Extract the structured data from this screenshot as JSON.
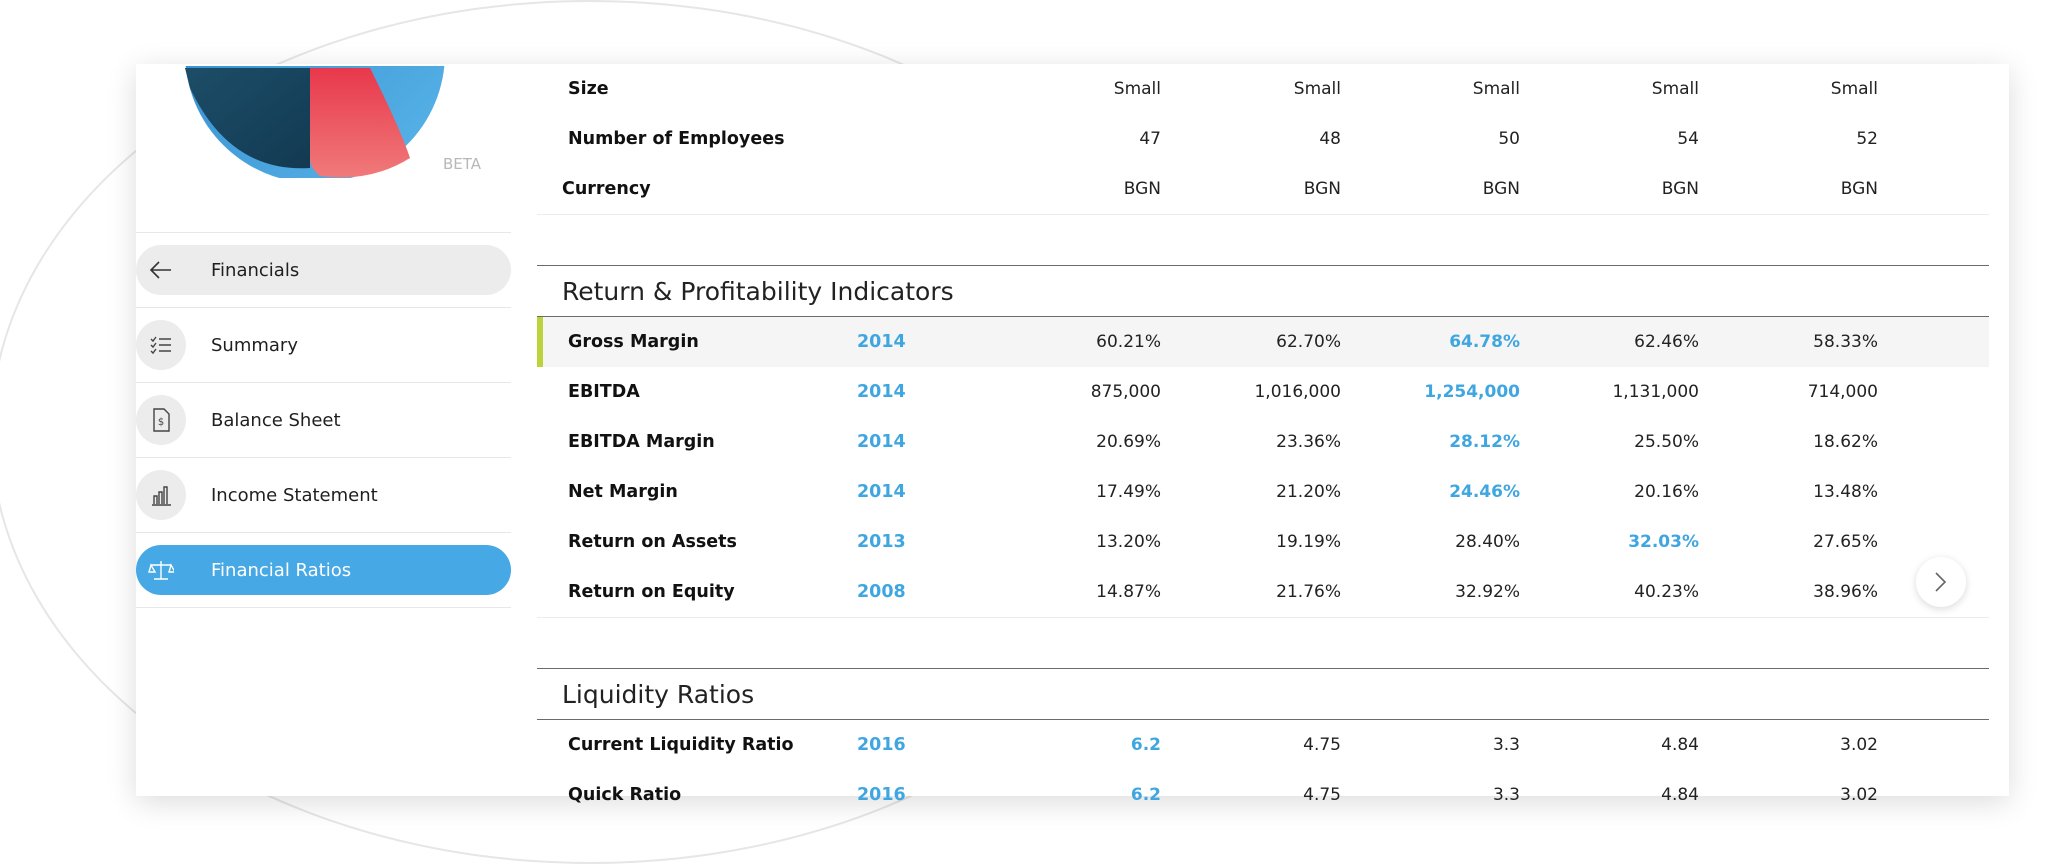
{
  "logo": {
    "beta_label": "BETA"
  },
  "sidebar": {
    "items": [
      {
        "label": "Financials",
        "icon": "arrow-left-icon",
        "state": "back"
      },
      {
        "label": "Summary",
        "icon": "list-check-icon",
        "state": "normal"
      },
      {
        "label": "Balance Sheet",
        "icon": "document-dollar-icon",
        "state": "normal"
      },
      {
        "label": "Income Statement",
        "icon": "bar-chart-icon",
        "state": "normal"
      },
      {
        "label": "Financial Ratios",
        "icon": "scales-icon",
        "state": "active"
      }
    ]
  },
  "top_rows": [
    {
      "name": "Size",
      "values": [
        "Small",
        "Small",
        "Small",
        "Small",
        "Small"
      ]
    },
    {
      "name": "Number of Employees",
      "values": [
        "47",
        "48",
        "50",
        "54",
        "52"
      ]
    },
    {
      "name": "Currency",
      "values": [
        "BGN",
        "BGN",
        "BGN",
        "BGN",
        "BGN"
      ]
    }
  ],
  "sections": [
    {
      "title": "Return & Profitability Indicators",
      "rows": [
        {
          "name": "Gross Margin",
          "year": "2014",
          "values": [
            "60.21%",
            "62.70%",
            "64.78%",
            "62.46%",
            "58.33%"
          ],
          "highlight_index": 2,
          "row_highlight": true
        },
        {
          "name": "EBITDA",
          "year": "2014",
          "values": [
            "875,000",
            "1,016,000",
            "1,254,000",
            "1,131,000",
            "714,000"
          ],
          "highlight_index": 2
        },
        {
          "name": "EBITDA Margin",
          "year": "2014",
          "values": [
            "20.69%",
            "23.36%",
            "28.12%",
            "25.50%",
            "18.62%"
          ],
          "highlight_index": 2
        },
        {
          "name": "Net Margin",
          "year": "2014",
          "values": [
            "17.49%",
            "21.20%",
            "24.46%",
            "20.16%",
            "13.48%"
          ],
          "highlight_index": 2
        },
        {
          "name": "Return on Assets",
          "year": "2013",
          "values": [
            "13.20%",
            "19.19%",
            "28.40%",
            "32.03%",
            "27.65%"
          ],
          "highlight_index": 3
        },
        {
          "name": "Return on Equity",
          "year": "2008",
          "values": [
            "14.87%",
            "21.76%",
            "32.92%",
            "40.23%",
            "38.96%"
          ],
          "highlight_index": -1
        }
      ]
    },
    {
      "title": "Liquidity Ratios",
      "rows": [
        {
          "name": "Current Liquidity Ratio",
          "year": "2016",
          "values": [
            "6.2",
            "4.75",
            "3.3",
            "4.84",
            "3.02"
          ],
          "highlight_index": 0
        },
        {
          "name": "Quick Ratio",
          "year": "2016",
          "values": [
            "6.2",
            "4.75",
            "3.3",
            "4.84",
            "3.02"
          ],
          "highlight_index": 0
        }
      ]
    }
  ],
  "colors": {
    "accent": "#46a8e4",
    "highlight_bar": "#bcd33b",
    "value_highlight": "#3fa6e0"
  },
  "next_button": {
    "icon": "chevron-right-icon"
  }
}
